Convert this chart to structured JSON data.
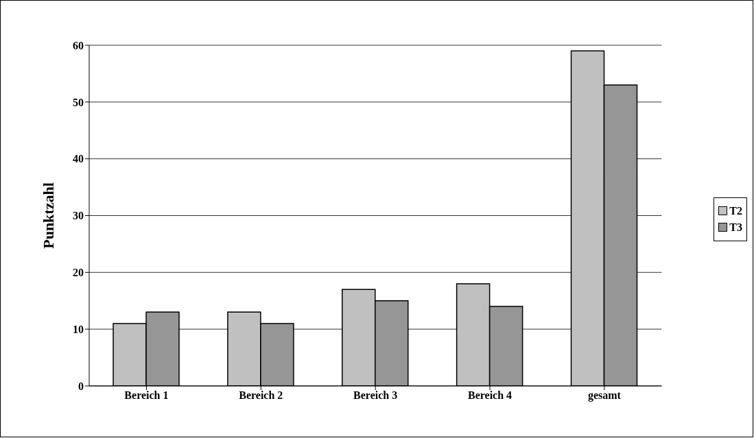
{
  "chart_data": {
    "type": "bar",
    "ylabel": "Punktzahl",
    "categories": [
      "Bereich 1",
      "Bereich 2",
      "Bereich 3",
      "Bereich 4",
      "gesamt"
    ],
    "series": [
      {
        "name": "T2",
        "color": "#c0c0c0",
        "values": [
          11,
          13,
          17,
          18,
          59
        ]
      },
      {
        "name": "T3",
        "color": "#969696",
        "values": [
          13,
          11,
          15,
          14,
          53
        ]
      }
    ],
    "ylim": [
      0,
      60
    ],
    "yticks": [
      0,
      10,
      20,
      30,
      40,
      50,
      60
    ],
    "grid": "y",
    "legend": "right"
  }
}
